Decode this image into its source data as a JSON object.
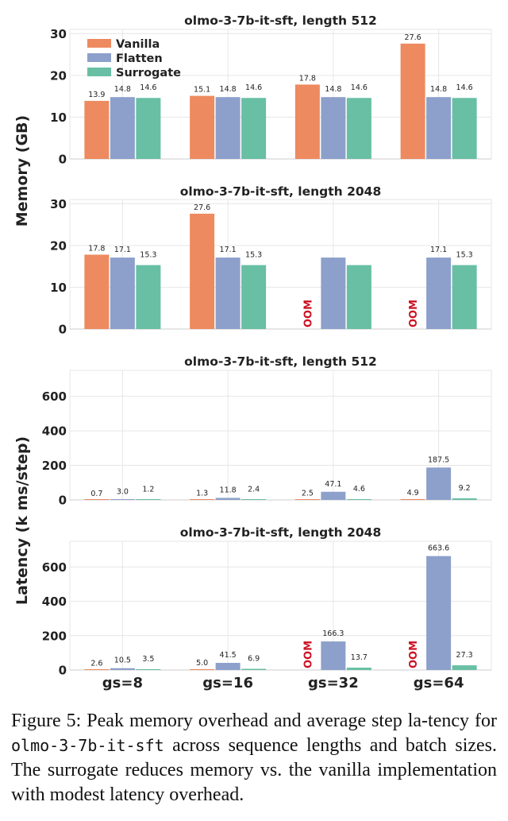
{
  "colors": {
    "Vanilla": "#ee8a5f",
    "Flatten": "#8da0cb",
    "Surrogate": "#68bfa3",
    "oom": "#cc1122",
    "grid": "#e6e6e6",
    "axis": "#cccccc"
  },
  "chart_data": [
    {
      "type": "bar",
      "title": "olmo-3-7b-it-sft, length 512",
      "categories": [
        "gs=8",
        "gs=16",
        "gs=32",
        "gs=64"
      ],
      "ylabel": "Memory (GB)",
      "ylim": [
        0,
        31
      ],
      "yticks": [
        0,
        10,
        20,
        30
      ],
      "legend": {
        "entries": [
          "Vanilla",
          "Flatten",
          "Surrogate"
        ],
        "placement": "top-left"
      },
      "series": [
        {
          "name": "Vanilla",
          "values": [
            13.9,
            15.1,
            17.8,
            27.6
          ],
          "labels": [
            "13.9",
            "15.1",
            "17.8",
            "27.6"
          ]
        },
        {
          "name": "Flatten",
          "values": [
            14.8,
            14.8,
            14.8,
            14.8
          ],
          "labels": [
            "14.8",
            "14.8",
            "14.8",
            "14.8"
          ]
        },
        {
          "name": "Surrogate",
          "values": [
            14.6,
            14.6,
            14.6,
            14.6
          ],
          "labels": [
            "14.6",
            "14.6",
            "14.6",
            "14.6"
          ]
        }
      ],
      "grid": true
    },
    {
      "type": "bar",
      "title": "olmo-3-7b-it-sft, length 2048",
      "categories": [
        "gs=8",
        "gs=16",
        "gs=32",
        "gs=64"
      ],
      "ylabel": "Memory (GB)",
      "ylim": [
        0,
        31
      ],
      "yticks": [
        0,
        10,
        20,
        30
      ],
      "series": [
        {
          "name": "Vanilla",
          "values": [
            17.8,
            27.6,
            null,
            null
          ],
          "labels": [
            "17.8",
            "27.6",
            "OOM",
            "OOM"
          ]
        },
        {
          "name": "Flatten",
          "values": [
            17.1,
            17.1,
            17.1,
            17.1
          ],
          "labels": [
            "17.1",
            "17.1",
            "",
            "17.1"
          ]
        },
        {
          "name": "Surrogate",
          "values": [
            15.3,
            15.3,
            15.3,
            15.3
          ],
          "labels": [
            "15.3",
            "15.3",
            "",
            "15.3"
          ]
        }
      ],
      "grid": true
    },
    {
      "type": "bar",
      "title": "olmo-3-7b-it-sft, length 512",
      "categories": [
        "gs=8",
        "gs=16",
        "gs=32",
        "gs=64"
      ],
      "ylabel": "Latency (k ms/step)",
      "ylim": [
        0,
        750
      ],
      "yticks": [
        0,
        200,
        400,
        600
      ],
      "series": [
        {
          "name": "Vanilla",
          "values": [
            0.7,
            1.3,
            2.5,
            4.9
          ],
          "labels": [
            "0.7",
            "1.3",
            "2.5",
            "4.9"
          ]
        },
        {
          "name": "Flatten",
          "values": [
            3.0,
            11.8,
            47.1,
            187.5
          ],
          "labels": [
            "3.0",
            "11.8",
            "47.1",
            "187.5"
          ]
        },
        {
          "name": "Surrogate",
          "values": [
            1.2,
            2.4,
            4.6,
            9.2
          ],
          "labels": [
            "1.2",
            "2.4",
            "4.6",
            "9.2"
          ]
        }
      ],
      "grid": true
    },
    {
      "type": "bar",
      "title": "olmo-3-7b-it-sft, length 2048",
      "categories": [
        "gs=8",
        "gs=16",
        "gs=32",
        "gs=64"
      ],
      "ylabel": "Latency (k ms/step)",
      "ylim": [
        0,
        750
      ],
      "yticks": [
        0,
        200,
        400,
        600
      ],
      "series": [
        {
          "name": "Vanilla",
          "values": [
            2.6,
            5.0,
            null,
            null
          ],
          "labels": [
            "2.6",
            "5.0",
            "OOM",
            "OOM"
          ]
        },
        {
          "name": "Flatten",
          "values": [
            10.5,
            41.5,
            166.3,
            663.6
          ],
          "labels": [
            "10.5",
            "41.5",
            "166.3",
            "663.6"
          ]
        },
        {
          "name": "Surrogate",
          "values": [
            3.5,
            6.9,
            13.7,
            27.3
          ],
          "labels": [
            "3.5",
            "6.9",
            "13.7",
            "27.3"
          ]
        }
      ],
      "grid": true
    }
  ],
  "axis_labels": {
    "memory": "Memory (GB)",
    "latency": "Latency (k ms/step)"
  },
  "caption": {
    "prefix": "Figure 5: Peak memory overhead and average step la-tency for ",
    "code": "olmo-3-7b-it-sft",
    "suffix": " across sequence lengths and batch sizes. The surrogate reduces memory vs. the vanilla implementation with modest latency overhead."
  }
}
